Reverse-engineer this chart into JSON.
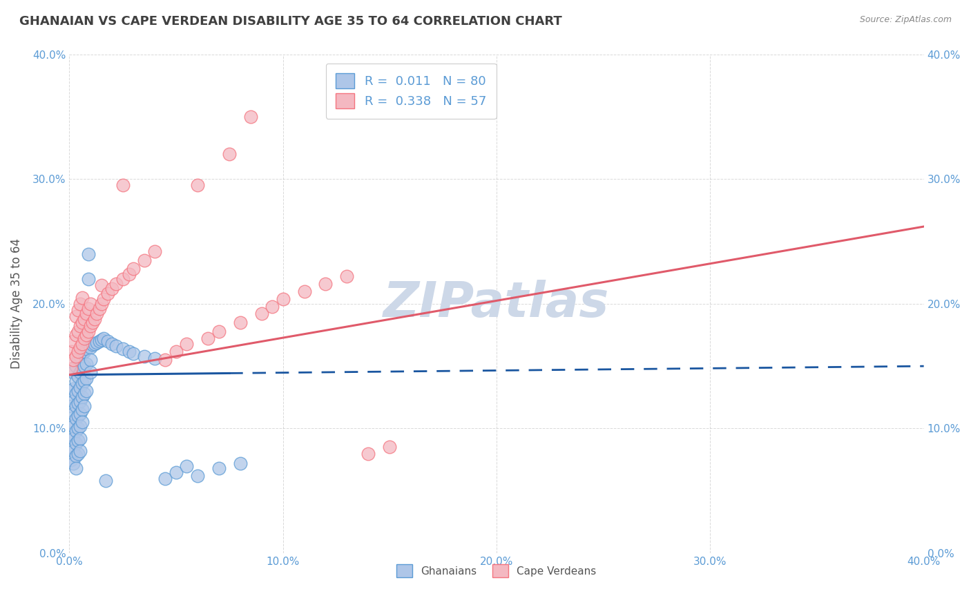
{
  "title": "GHANAIAN VS CAPE VERDEAN DISABILITY AGE 35 TO 64 CORRELATION CHART",
  "source": "Source: ZipAtlas.com",
  "ylabel": "Disability Age 35 to 64",
  "xlim": [
    0.0,
    0.4
  ],
  "ylim": [
    0.0,
    0.4
  ],
  "x_tick_labels": [
    "0.0%",
    "10.0%",
    "20.0%",
    "30.0%",
    "40.0%"
  ],
  "y_tick_labels": [
    "0.0%",
    "10.0%",
    "20.0%",
    "30.0%",
    "40.0%"
  ],
  "watermark": "ZIPatlas",
  "legend_R_N_label_1": "R =  0.011   N = 80",
  "legend_R_N_label_2": "R =  0.338   N = 57",
  "blue_color": "#5b9bd5",
  "pink_color": "#f4747f",
  "blue_scatter_color": "#aec6e8",
  "pink_scatter_color": "#f4b8c1",
  "blue_line_color": "#1a56a0",
  "pink_line_color": "#e05a6a",
  "title_color": "#404040",
  "title_fontsize": 13,
  "axis_label_color": "#555555",
  "tick_color": "#5b9bd5",
  "grid_color": "#c0c0c0",
  "background_color": "#ffffff",
  "legend_text_color": "#5b9bd5",
  "watermark_color": "#cdd8e8",
  "watermark_fontsize": 52,
  "blue_scatter": [
    [
      0.001,
      0.13
    ],
    [
      0.001,
      0.118
    ],
    [
      0.001,
      0.105
    ],
    [
      0.001,
      0.095
    ],
    [
      0.001,
      0.085
    ],
    [
      0.001,
      0.075
    ],
    [
      0.002,
      0.145
    ],
    [
      0.002,
      0.132
    ],
    [
      0.002,
      0.122
    ],
    [
      0.002,
      0.112
    ],
    [
      0.002,
      0.102
    ],
    [
      0.002,
      0.092
    ],
    [
      0.002,
      0.082
    ],
    [
      0.002,
      0.072
    ],
    [
      0.003,
      0.15
    ],
    [
      0.003,
      0.138
    ],
    [
      0.003,
      0.128
    ],
    [
      0.003,
      0.118
    ],
    [
      0.003,
      0.108
    ],
    [
      0.003,
      0.098
    ],
    [
      0.003,
      0.088
    ],
    [
      0.003,
      0.078
    ],
    [
      0.003,
      0.068
    ],
    [
      0.004,
      0.155
    ],
    [
      0.004,
      0.142
    ],
    [
      0.004,
      0.13
    ],
    [
      0.004,
      0.12
    ],
    [
      0.004,
      0.11
    ],
    [
      0.004,
      0.1
    ],
    [
      0.004,
      0.09
    ],
    [
      0.004,
      0.08
    ],
    [
      0.005,
      0.158
    ],
    [
      0.005,
      0.145
    ],
    [
      0.005,
      0.133
    ],
    [
      0.005,
      0.122
    ],
    [
      0.005,
      0.112
    ],
    [
      0.005,
      0.102
    ],
    [
      0.005,
      0.092
    ],
    [
      0.005,
      0.082
    ],
    [
      0.006,
      0.16
    ],
    [
      0.006,
      0.148
    ],
    [
      0.006,
      0.136
    ],
    [
      0.006,
      0.125
    ],
    [
      0.006,
      0.115
    ],
    [
      0.006,
      0.105
    ],
    [
      0.007,
      0.162
    ],
    [
      0.007,
      0.15
    ],
    [
      0.007,
      0.138
    ],
    [
      0.007,
      0.128
    ],
    [
      0.007,
      0.118
    ],
    [
      0.008,
      0.164
    ],
    [
      0.008,
      0.152
    ],
    [
      0.008,
      0.14
    ],
    [
      0.008,
      0.13
    ],
    [
      0.009,
      0.24
    ],
    [
      0.009,
      0.22
    ],
    [
      0.01,
      0.165
    ],
    [
      0.01,
      0.155
    ],
    [
      0.01,
      0.145
    ],
    [
      0.011,
      0.167
    ],
    [
      0.012,
      0.168
    ],
    [
      0.013,
      0.169
    ],
    [
      0.014,
      0.17
    ],
    [
      0.015,
      0.171
    ],
    [
      0.016,
      0.172
    ],
    [
      0.017,
      0.058
    ],
    [
      0.018,
      0.17
    ],
    [
      0.02,
      0.168
    ],
    [
      0.022,
      0.166
    ],
    [
      0.025,
      0.164
    ],
    [
      0.028,
      0.162
    ],
    [
      0.03,
      0.16
    ],
    [
      0.035,
      0.158
    ],
    [
      0.04,
      0.156
    ],
    [
      0.045,
      0.06
    ],
    [
      0.05,
      0.065
    ],
    [
      0.055,
      0.07
    ],
    [
      0.06,
      0.062
    ],
    [
      0.07,
      0.068
    ],
    [
      0.08,
      0.072
    ]
  ],
  "pink_scatter": [
    [
      0.001,
      0.148
    ],
    [
      0.001,
      0.162
    ],
    [
      0.002,
      0.155
    ],
    [
      0.002,
      0.17
    ],
    [
      0.003,
      0.158
    ],
    [
      0.003,
      0.175
    ],
    [
      0.003,
      0.19
    ],
    [
      0.004,
      0.162
    ],
    [
      0.004,
      0.178
    ],
    [
      0.004,
      0.195
    ],
    [
      0.005,
      0.165
    ],
    [
      0.005,
      0.182
    ],
    [
      0.005,
      0.2
    ],
    [
      0.006,
      0.168
    ],
    [
      0.006,
      0.185
    ],
    [
      0.006,
      0.205
    ],
    [
      0.007,
      0.172
    ],
    [
      0.007,
      0.188
    ],
    [
      0.008,
      0.175
    ],
    [
      0.008,
      0.192
    ],
    [
      0.009,
      0.178
    ],
    [
      0.009,
      0.196
    ],
    [
      0.01,
      0.182
    ],
    [
      0.01,
      0.2
    ],
    [
      0.011,
      0.185
    ],
    [
      0.012,
      0.188
    ],
    [
      0.013,
      0.192
    ],
    [
      0.014,
      0.196
    ],
    [
      0.015,
      0.2
    ],
    [
      0.015,
      0.215
    ],
    [
      0.016,
      0.204
    ],
    [
      0.018,
      0.208
    ],
    [
      0.02,
      0.212
    ],
    [
      0.022,
      0.216
    ],
    [
      0.025,
      0.22
    ],
    [
      0.025,
      0.295
    ],
    [
      0.028,
      0.224
    ],
    [
      0.03,
      0.228
    ],
    [
      0.035,
      0.235
    ],
    [
      0.04,
      0.242
    ],
    [
      0.045,
      0.155
    ],
    [
      0.05,
      0.162
    ],
    [
      0.055,
      0.168
    ],
    [
      0.06,
      0.295
    ],
    [
      0.065,
      0.172
    ],
    [
      0.07,
      0.178
    ],
    [
      0.075,
      0.32
    ],
    [
      0.08,
      0.185
    ],
    [
      0.085,
      0.35
    ],
    [
      0.09,
      0.192
    ],
    [
      0.095,
      0.198
    ],
    [
      0.1,
      0.204
    ],
    [
      0.11,
      0.21
    ],
    [
      0.12,
      0.216
    ],
    [
      0.13,
      0.222
    ],
    [
      0.14,
      0.08
    ],
    [
      0.15,
      0.085
    ]
  ],
  "blue_line_solid_end": 0.075,
  "pink_line_y_start": 0.143,
  "pink_line_y_end": 0.262
}
